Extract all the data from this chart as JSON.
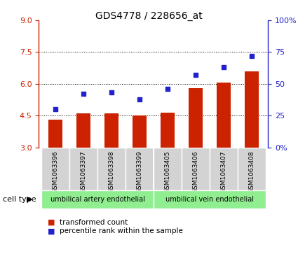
{
  "title": "GDS4778 / 228656_at",
  "samples": [
    "GSM1063396",
    "GSM1063397",
    "GSM1063398",
    "GSM1063399",
    "GSM1063405",
    "GSM1063406",
    "GSM1063407",
    "GSM1063408"
  ],
  "bar_values": [
    4.3,
    4.6,
    4.6,
    4.5,
    4.65,
    5.8,
    6.05,
    6.6
  ],
  "dot_values": [
    30,
    42,
    43,
    38,
    46,
    57,
    63,
    72
  ],
  "ylim_left": [
    3,
    9
  ],
  "ylim_right": [
    0,
    100
  ],
  "yticks_left": [
    3,
    4.5,
    6,
    7.5,
    9
  ],
  "yticks_right": [
    0,
    25,
    50,
    75,
    100
  ],
  "ytick_labels_right": [
    "0%",
    "25",
    "50",
    "75",
    "100%"
  ],
  "bar_color": "#cc2200",
  "dot_color": "#2222cc",
  "grid_lines": [
    4.5,
    6.0,
    7.5
  ],
  "group1_label": "umbilical artery endothelial",
  "group2_label": "umbilical vein endothelial",
  "group1_indices": [
    0,
    1,
    2,
    3
  ],
  "group2_indices": [
    4,
    5,
    6,
    7
  ],
  "cell_type_label": "cell type",
  "legend_bar_label": "transformed count",
  "legend_dot_label": "percentile rank within the sample",
  "bg_color_plot": "#ffffff",
  "bg_color_tick": "#d3d3d3",
  "bg_color_group": "#90ee90",
  "title_color": "#000000",
  "left_tick_color": "#cc2200",
  "right_tick_color": "#2222cc"
}
